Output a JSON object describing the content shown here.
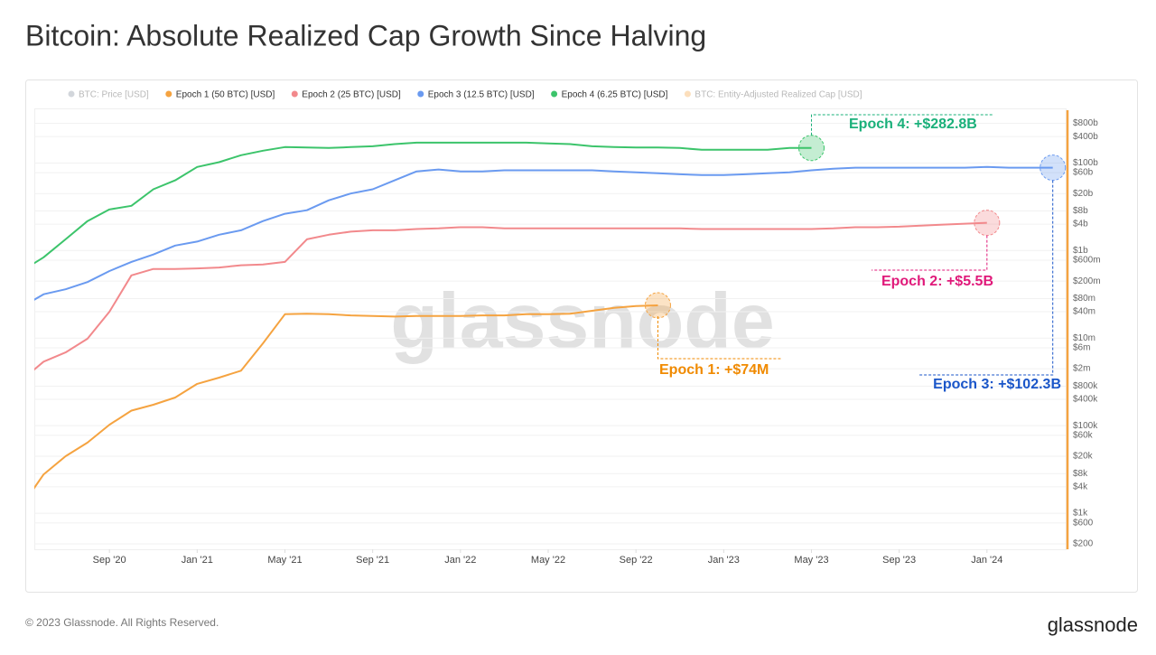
{
  "chart_data": {
    "type": "line",
    "title": "Bitcoin: Absolute Realized Cap Growth Since Halving",
    "log_scale": true,
    "grid": true,
    "x": [
      "2020-05",
      "2020-06",
      "2020-07",
      "2020-08",
      "2020-09",
      "2020-10",
      "2020-11",
      "2020-12",
      "2021-01",
      "2021-02",
      "2021-03",
      "2021-04",
      "2021-05",
      "2021-06",
      "2021-07",
      "2021-08",
      "2021-09",
      "2021-10",
      "2021-11",
      "2021-12",
      "2022-01",
      "2022-02",
      "2022-03",
      "2022-04",
      "2022-05",
      "2022-06",
      "2022-07",
      "2022-08",
      "2022-09",
      "2022-10",
      "2022-11",
      "2022-12",
      "2023-01",
      "2023-02",
      "2023-03",
      "2023-04",
      "2023-05",
      "2023-06",
      "2023-07",
      "2023-08",
      "2023-09",
      "2023-10",
      "2023-11",
      "2023-12",
      "2024-01",
      "2024-02",
      "2024-03",
      "2024-04"
    ],
    "xlim": [
      "2020-05",
      "2024-05"
    ],
    "xticks": [
      {
        "value": "2020-09",
        "label": "Sep '20"
      },
      {
        "value": "2021-01",
        "label": "Jan '21"
      },
      {
        "value": "2021-05",
        "label": "May '21"
      },
      {
        "value": "2021-09",
        "label": "Sep '21"
      },
      {
        "value": "2022-01",
        "label": "Jan '22"
      },
      {
        "value": "2022-05",
        "label": "May '22"
      },
      {
        "value": "2022-09",
        "label": "Sep '22"
      },
      {
        "value": "2023-01",
        "label": "Jan '23"
      },
      {
        "value": "2023-05",
        "label": "May '23"
      },
      {
        "value": "2023-09",
        "label": "Sep '23"
      },
      {
        "value": "2024-01",
        "label": "Jan '24"
      }
    ],
    "ylim": [
      150,
      1600000000000.0
    ],
    "yticks": [
      {
        "value": 800000000000.0,
        "label": "$800b"
      },
      {
        "value": 400000000000.0,
        "label": "$400b"
      },
      {
        "value": 100000000000.0,
        "label": "$100b"
      },
      {
        "value": 60000000000.0,
        "label": "$60b"
      },
      {
        "value": 20000000000.0,
        "label": "$20b"
      },
      {
        "value": 8000000000.0,
        "label": "$8b"
      },
      {
        "value": 4000000000.0,
        "label": "$4b"
      },
      {
        "value": 1000000000.0,
        "label": "$1b"
      },
      {
        "value": 600000000.0,
        "label": "$600m"
      },
      {
        "value": 200000000.0,
        "label": "$200m"
      },
      {
        "value": 80000000.0,
        "label": "$80m"
      },
      {
        "value": 40000000.0,
        "label": "$40m"
      },
      {
        "value": 10000000.0,
        "label": "$10m"
      },
      {
        "value": 6000000.0,
        "label": "$6m"
      },
      {
        "value": 2000000.0,
        "label": "$2m"
      },
      {
        "value": 800000.0,
        "label": "$800k"
      },
      {
        "value": 400000.0,
        "label": "$400k"
      },
      {
        "value": 100000.0,
        "label": "$100k"
      },
      {
        "value": 60000.0,
        "label": "$60k"
      },
      {
        "value": 20000.0,
        "label": "$20k"
      },
      {
        "value": 8000,
        "label": "$8k"
      },
      {
        "value": 4000,
        "label": "$4k"
      },
      {
        "value": 1000,
        "label": "$1k"
      },
      {
        "value": 600,
        "label": "$600"
      },
      {
        "value": 200,
        "label": "$200"
      }
    ],
    "series": [
      {
        "name": "Epoch 1 (50 BTC) [USD]",
        "color": "#f5a340",
        "annotation": "Epoch 1: +$74M",
        "annotation_color": "#f08a00",
        "values": [
          1460,
          7700,
          20000.0,
          41000.0,
          105000.0,
          220000.0,
          300000.0,
          440000.0,
          900000.0,
          1250000.0,
          1800000.0,
          7600000.0,
          35000000.0,
          36000000.0,
          35000000.0,
          33000000.0,
          32000000.0,
          31000000.0,
          32000000.0,
          32000000.0,
          32000000.0,
          33000000.0,
          33000000.0,
          35000000.0,
          35000000.0,
          36000000.0,
          42000000.0,
          49000000.0,
          54000000.0,
          56000000.0,
          null,
          null,
          null,
          null,
          null,
          null,
          null,
          null,
          null,
          null,
          null,
          null,
          null,
          null,
          null,
          null,
          null,
          null
        ]
      },
      {
        "name": "Epoch 2 (25 BTC) [USD]",
        "color": "#f2898c",
        "annotation": "Epoch 2: +$5.5B",
        "annotation_color": "#e0197a",
        "values": [
          1100000.0,
          2900000.0,
          4700000.0,
          9700000.0,
          40000000.0,
          270000000.0,
          380000000.0,
          380000000.0,
          390000000.0,
          410000000.0,
          460000000.0,
          480000000.0,
          550000000.0,
          1800000000.0,
          2300000000.0,
          2700000000.0,
          2900000000.0,
          2900000000.0,
          3100000000.0,
          3200000000.0,
          3400000000.0,
          3400000000.0,
          3200000000.0,
          3200000000.0,
          3200000000.0,
          3200000000.0,
          3200000000.0,
          3200000000.0,
          3200000000.0,
          3200000000.0,
          3200000000.0,
          3100000000.0,
          3100000000.0,
          3100000000.0,
          3100000000.0,
          3100000000.0,
          3100000000.0,
          3200000000.0,
          3400000000.0,
          3400000000.0,
          3500000000.0,
          3700000000.0,
          3900000000.0,
          4100000000.0,
          4300000000.0,
          null,
          null,
          null
        ]
      },
      {
        "name": "Epoch 3 (12.5 BTC) [USD]",
        "color": "#6a9af0",
        "annotation": "Epoch 3: +$102.3B",
        "annotation_color": "#1a56c9",
        "values": [
          51000000.0,
          100000000.0,
          130000000.0,
          190000000.0,
          340000000.0,
          550000000.0,
          810000000.0,
          1300000000.0,
          1600000000.0,
          2300000000.0,
          2900000000.0,
          4700000000.0,
          6900000000.0,
          8300000000.0,
          14000000000.0,
          20000000000.0,
          25000000000.0,
          40000000000.0,
          64000000000.0,
          71000000000.0,
          64000000000.0,
          64000000000.0,
          68000000000.0,
          68000000000.0,
          68000000000.0,
          68000000000.0,
          68000000000.0,
          64000000000.0,
          61000000000.0,
          58000000000.0,
          55000000000.0,
          53000000000.0,
          53000000000.0,
          55000000000.0,
          58000000000.0,
          61000000000.0,
          68000000000.0,
          74000000000.0,
          78000000000.0,
          78000000000.0,
          78000000000.0,
          78000000000.0,
          78000000000.0,
          78000000000.0,
          81000000000.0,
          78000000000.0,
          78000000000.0,
          78000000000.0
        ]
      },
      {
        "name": "Epoch 4 (6.25 BTC) [USD]",
        "color": "#3cc46b",
        "annotation": "Epoch 4: +$282.8B",
        "annotation_color": "#1ab07a",
        "values": [
          340000000.0,
          700000000.0,
          1800000000.0,
          4700000000.0,
          8700000000.0,
          10500000000.0,
          25000000000.0,
          40000000000.0,
          81000000000.0,
          104000000000.0,
          150000000000.0,
          190000000000.0,
          230000000000.0,
          225000000000.0,
          220000000000.0,
          230000000000.0,
          240000000000.0,
          270000000000.0,
          290000000000.0,
          290000000000.0,
          290000000000.0,
          290000000000.0,
          290000000000.0,
          290000000000.0,
          280000000000.0,
          270000000000.0,
          240000000000.0,
          230000000000.0,
          225000000000.0,
          225000000000.0,
          220000000000.0,
          200000000000.0,
          200000000000.0,
          200000000000.0,
          200000000000.0,
          220000000000.0,
          220000000000.0,
          null,
          null,
          null,
          null,
          null,
          null,
          null,
          null,
          null,
          null,
          null
        ]
      }
    ],
    "inactive_series": [
      {
        "name": "BTC: Price [USD]",
        "color": "#7f8c99"
      },
      {
        "name": "BTC: Entity-Adjusted Realized Cap [USD]",
        "color": "#f5a340"
      }
    ],
    "watermark": "glassnode",
    "footer": "© 2023 Glassnode. All Rights Reserved.",
    "logo": "glassnode"
  }
}
